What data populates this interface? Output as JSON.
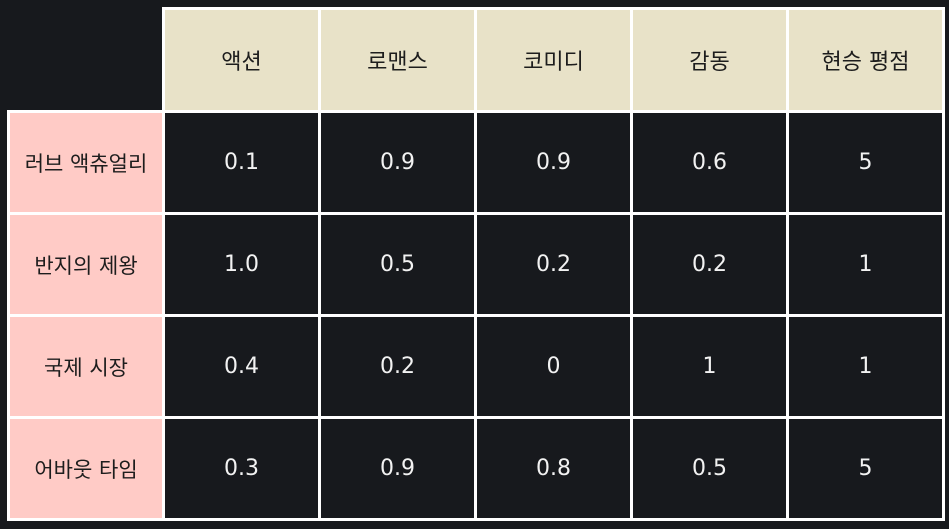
{
  "table": {
    "columns": [
      "액션",
      "로맨스",
      "코미디",
      "감동",
      "현승 평점"
    ],
    "rows": [
      {
        "label": "러브 액츄얼리",
        "values": [
          "0.1",
          "0.9",
          "0.9",
          "0.6",
          "5"
        ]
      },
      {
        "label": "반지의 제왕",
        "values": [
          "1.0",
          "0.5",
          "0.2",
          "0.2",
          "1"
        ]
      },
      {
        "label": "국제 시장",
        "values": [
          "0.4",
          "0.2",
          "0",
          "1",
          "1"
        ]
      },
      {
        "label": "어바웃 타임",
        "values": [
          "0.3",
          "0.9",
          "0.8",
          "0.5",
          "5"
        ]
      }
    ]
  },
  "colors": {
    "background": "#17191d",
    "header": "#e8e2c8",
    "row_label": "#ffcbc6",
    "border": "#ffffff"
  }
}
